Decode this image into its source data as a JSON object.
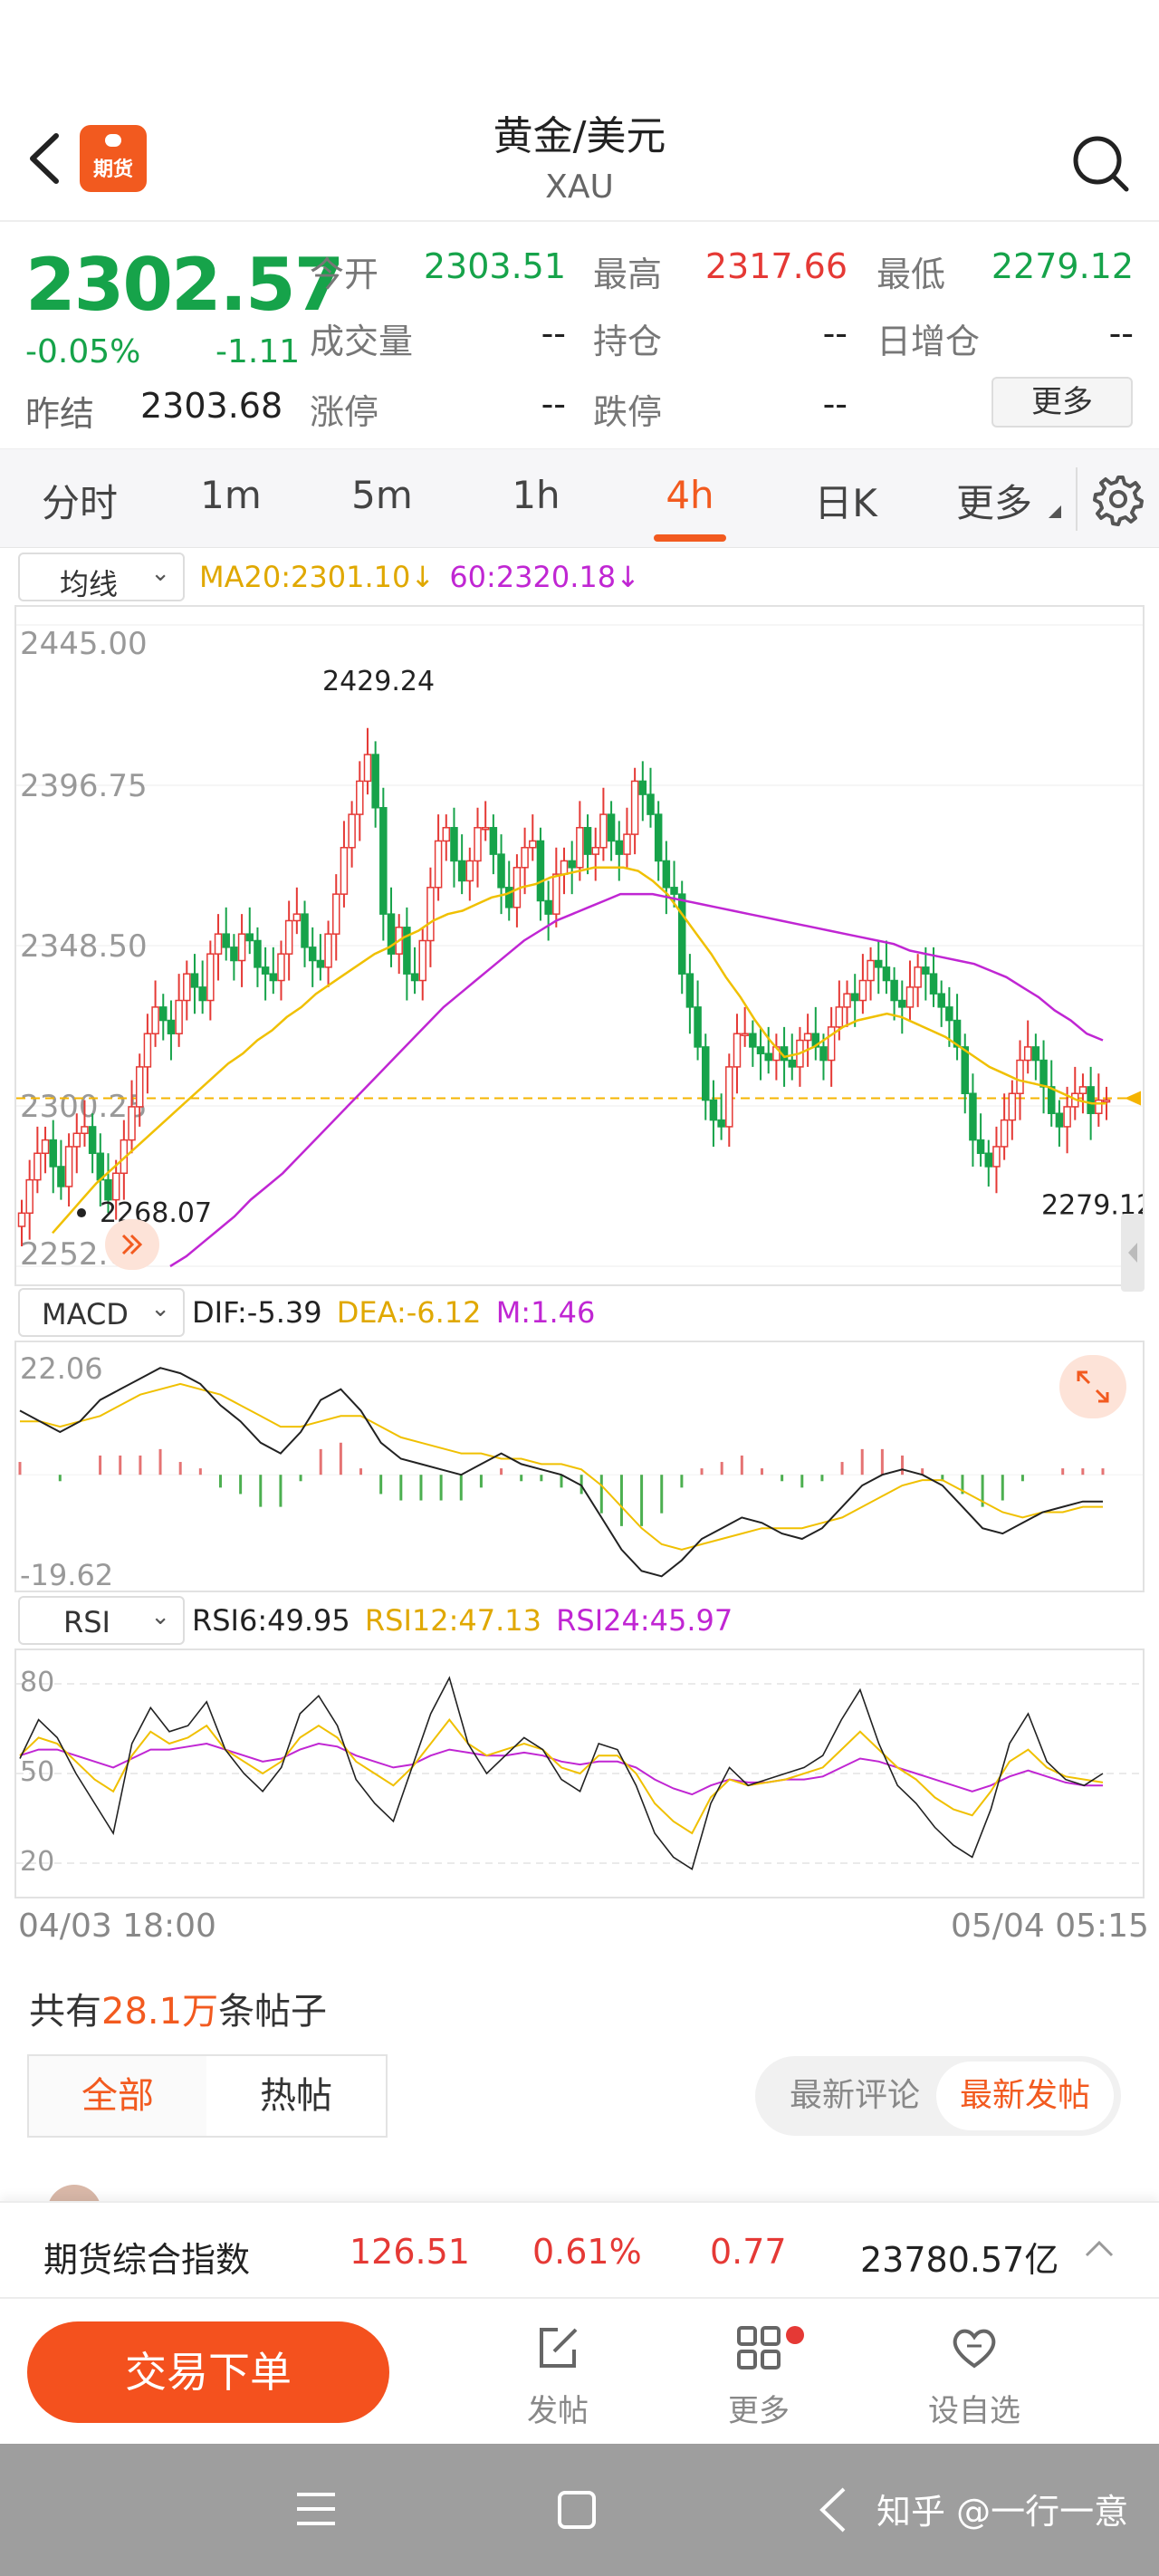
{
  "header": {
    "title": "黄金/美元",
    "subtitle": "XAU",
    "logo_text": "期货"
  },
  "quote": {
    "price": "2302.57",
    "pct": "-0.05%",
    "change": "-1.11",
    "prev_close_label": "昨结",
    "prev_close": "2303.68",
    "open_label": "今开",
    "open": "2303.51",
    "high_label": "最高",
    "high": "2317.66",
    "low_label": "最低",
    "low": "2279.12",
    "volume_label": "成交量",
    "volume": "--",
    "oi_label": "持仓",
    "oi": "--",
    "daily_oi_label": "日增仓",
    "daily_oi": "--",
    "limit_up_label": "涨停",
    "limit_up": "--",
    "limit_down_label": "跌停",
    "limit_down": "--",
    "more_label": "更多",
    "up_color": "#e53935",
    "down_color": "#16a34a"
  },
  "tabs": [
    "分时",
    "1m",
    "5m",
    "1h",
    "4h",
    "日K",
    "更多"
  ],
  "active_tab": "4h",
  "ma_panel": {
    "select_label": "均线",
    "ma20": "MA20:2301.10",
    "ma60": "60:2320.18",
    "arrow": "↓",
    "y_labels": [
      "2445.00",
      "2396.75",
      "2348.50",
      "2300.25",
      "2252.00"
    ],
    "peak_label": "2429.24",
    "low_label": "2268.07",
    "last_low_label": "2279.12"
  },
  "macd_panel": {
    "select_label": "MACD",
    "dif": "DIF:-5.39",
    "dea": "DEA:-6.12",
    "m": "M:1.46",
    "y_top": "22.06",
    "y_bottom": "-19.62"
  },
  "rsi_panel": {
    "select_label": "RSI",
    "rsi6": "RSI6:49.95",
    "rsi12": "RSI12:47.13",
    "rsi24": "RSI24:45.97",
    "y_labels": [
      "80",
      "50",
      "20"
    ]
  },
  "dates": {
    "start": "04/03 18:00",
    "end": "05/04 05:15"
  },
  "posts": {
    "prefix": "共有",
    "count": "28.1万",
    "suffix": "条帖子",
    "tab_all": "全部",
    "tab_hot": "热帖",
    "sort_latest_comment": "最新评论",
    "sort_latest_post": "最新发帖"
  },
  "index_bar": {
    "name": "期货综合指数",
    "value": "126.51",
    "pct": "0.61%",
    "change": "0.77",
    "amount": "23780.57亿"
  },
  "bottom_bar": {
    "trade_label": "交易下单",
    "post_label": "发帖",
    "more_label": "更多",
    "watch_label": "设自选"
  },
  "watermark": "知乎 @一行一意",
  "chart_data": [
    {
      "type": "candlestick",
      "title": "",
      "period": "4h",
      "x_start": "04/03 18:00",
      "x_end": "05/04 05:15",
      "ylim": [
        2252.0,
        2445.0
      ],
      "y_ticks": [
        2445.0,
        2396.75,
        2348.5,
        2300.25,
        2252.0
      ],
      "last_price": 2302.57,
      "peak": 2429.24,
      "trough": 2268.07,
      "recent_low": 2279.12,
      "closes": [
        2268,
        2278,
        2286,
        2290,
        2282,
        2276,
        2288,
        2292,
        2294,
        2286,
        2278,
        2272,
        2280,
        2290,
        2300,
        2312,
        2322,
        2330,
        2326,
        2322,
        2332,
        2340,
        2336,
        2332,
        2346,
        2352,
        2348,
        2344,
        2352,
        2350,
        2342,
        2340,
        2338,
        2346,
        2356,
        2358,
        2348,
        2344,
        2342,
        2352,
        2364,
        2378,
        2388,
        2398,
        2406,
        2390,
        2358,
        2346,
        2354,
        2340,
        2338,
        2350,
        2366,
        2380,
        2384,
        2374,
        2368,
        2374,
        2384,
        2384,
        2376,
        2366,
        2360,
        2372,
        2378,
        2380,
        2362,
        2358,
        2370,
        2374,
        2372,
        2384,
        2376,
        2378,
        2388,
        2380,
        2376,
        2382,
        2398,
        2394,
        2388,
        2374,
        2366,
        2364,
        2340,
        2330,
        2318,
        2302,
        2296,
        2294,
        2312,
        2322,
        2322,
        2318,
        2316,
        2314,
        2318,
        2314,
        2312,
        2320,
        2322,
        2318,
        2314,
        2324,
        2330,
        2334,
        2332,
        2338,
        2344,
        2342,
        2338,
        2332,
        2330,
        2336,
        2342,
        2340,
        2334,
        2330,
        2326,
        2318,
        2304,
        2290,
        2286,
        2282,
        2288,
        2296,
        2304,
        2314,
        2318,
        2314,
        2306,
        2298,
        2294,
        2300,
        2304,
        2306,
        2298,
        2302,
        2302
      ],
      "ma20": [
        2262,
        2267,
        2272,
        2277,
        2281,
        2285,
        2289,
        2293,
        2297,
        2301,
        2305,
        2309,
        2313,
        2316,
        2320,
        2323,
        2327,
        2330,
        2334,
        2337,
        2340,
        2343,
        2346,
        2348,
        2351,
        2353,
        2356,
        2358,
        2359,
        2361,
        2363,
        2364,
        2366,
        2367,
        2369,
        2370,
        2371,
        2372,
        2372,
        2372,
        2371,
        2368,
        2364,
        2358,
        2352,
        2346,
        2339,
        2333,
        2326,
        2320,
        2315,
        2316,
        2318,
        2321,
        2324,
        2326,
        2327,
        2328,
        2327,
        2325,
        2323,
        2321,
        2318,
        2315,
        2312,
        2310,
        2308,
        2307,
        2306,
        2304,
        2302,
        2301,
        2301
      ],
      "ma60": [
        2252,
        2255,
        2259,
        2263,
        2267,
        2272,
        2276,
        2280,
        2285,
        2290,
        2295,
        2300,
        2305,
        2310,
        2315,
        2320,
        2325,
        2330,
        2334,
        2338,
        2342,
        2346,
        2350,
        2353,
        2356,
        2358,
        2360,
        2362,
        2364,
        2364,
        2364,
        2363,
        2362,
        2361,
        2360,
        2359,
        2358,
        2357,
        2356,
        2355,
        2354,
        2353,
        2352,
        2351,
        2350,
        2349,
        2347,
        2346,
        2345,
        2344,
        2343,
        2341,
        2339,
        2336,
        2333,
        2329,
        2326,
        2322,
        2320
      ]
    },
    {
      "type": "macd",
      "ylim": [
        -19.62,
        22.06
      ],
      "dif_last": -5.39,
      "dea_last": -6.12,
      "m_last": 1.46,
      "dif": [
        12,
        10,
        8,
        10,
        14,
        16,
        18,
        20,
        19,
        17,
        13,
        10,
        6,
        4,
        8,
        14,
        16,
        12,
        6,
        3,
        2,
        1,
        0,
        2,
        4,
        2,
        1,
        0,
        -2,
        -8,
        -14,
        -18,
        -19,
        -16,
        -12,
        -10,
        -8,
        -9,
        -11,
        -12,
        -10,
        -6,
        -2,
        0,
        1,
        0,
        -2,
        -6,
        -10,
        -11,
        -9,
        -7,
        -6,
        -5,
        -5
      ],
      "dea": [
        10,
        10,
        9,
        10,
        11,
        13,
        15,
        16,
        17,
        16,
        15,
        13,
        11,
        9,
        9,
        10,
        11,
        11,
        9,
        7,
        6,
        5,
        4,
        4,
        3,
        3,
        2,
        2,
        1,
        -2,
        -6,
        -10,
        -13,
        -14,
        -13,
        -12,
        -11,
        -10,
        -10,
        -10,
        -9,
        -8,
        -6,
        -4,
        -2,
        -1,
        -1,
        -3,
        -5,
        -7,
        -8,
        -7,
        -7,
        -6,
        -6
      ],
      "hist": [
        2,
        0,
        -1,
        0,
        3,
        3,
        3,
        4,
        2,
        1,
        -2,
        -3,
        -5,
        -5,
        -1,
        4,
        5,
        1,
        -3,
        -4,
        -4,
        -4,
        -4,
        -2,
        1,
        -1,
        -1,
        -2,
        -3,
        -6,
        -8,
        -8,
        -6,
        -2,
        1,
        2,
        3,
        1,
        -1,
        -2,
        -1,
        2,
        4,
        4,
        3,
        1,
        -1,
        -3,
        -5,
        -4,
        -1,
        0,
        1,
        1,
        1
      ]
    },
    {
      "type": "rsi",
      "ylim": [
        10,
        90
      ],
      "y_ticks": [
        80,
        50,
        20
      ],
      "rsi6_last": 49.95,
      "rsi12_last": 47.13,
      "rsi24_last": 45.97,
      "rsi6": [
        55,
        68,
        62,
        50,
        40,
        30,
        60,
        72,
        64,
        66,
        74,
        58,
        50,
        44,
        52,
        70,
        76,
        66,
        48,
        40,
        34,
        52,
        70,
        82,
        60,
        50,
        56,
        62,
        58,
        48,
        44,
        60,
        58,
        46,
        30,
        22,
        18,
        40,
        52,
        46,
        48,
        50,
        52,
        56,
        68,
        78,
        60,
        46,
        40,
        32,
        26,
        22,
        38,
        60,
        70,
        54,
        48,
        46,
        50
      ],
      "rsi12": [
        56,
        62,
        60,
        54,
        48,
        44,
        56,
        64,
        60,
        62,
        66,
        58,
        54,
        50,
        54,
        62,
        66,
        62,
        54,
        50,
        46,
        52,
        60,
        68,
        60,
        56,
        58,
        60,
        58,
        52,
        50,
        56,
        56,
        50,
        40,
        34,
        30,
        42,
        48,
        46,
        47,
        48,
        50,
        52,
        58,
        64,
        58,
        52,
        48,
        42,
        38,
        36,
        44,
        54,
        58,
        52,
        49,
        48,
        47
      ],
      "rsi24": [
        56,
        58,
        58,
        56,
        54,
        52,
        55,
        58,
        58,
        59,
        60,
        58,
        56,
        54,
        55,
        58,
        60,
        59,
        56,
        54,
        52,
        53,
        56,
        58,
        57,
        56,
        56,
        57,
        56,
        54,
        53,
        54,
        54,
        52,
        48,
        45,
        43,
        46,
        48,
        47,
        47,
        48,
        48,
        49,
        52,
        55,
        54,
        52,
        50,
        48,
        46,
        44,
        46,
        49,
        51,
        49,
        47,
        46,
        46
      ]
    }
  ]
}
